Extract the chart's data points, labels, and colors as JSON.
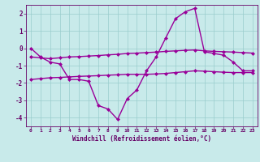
{
  "xlabel": "Windchill (Refroidissement éolien,°C)",
  "x_hours": [
    0,
    1,
    2,
    3,
    4,
    5,
    6,
    7,
    8,
    9,
    10,
    11,
    12,
    13,
    14,
    15,
    16,
    17,
    18,
    19,
    20,
    21,
    22,
    23
  ],
  "line1": [
    0.0,
    -0.5,
    -0.8,
    -0.9,
    -1.8,
    -1.8,
    -1.9,
    -3.3,
    -3.5,
    -4.1,
    -2.9,
    -2.4,
    -1.3,
    -0.5,
    0.6,
    1.7,
    2.1,
    2.3,
    -0.2,
    -0.3,
    -0.4,
    -0.8,
    -1.3,
    -1.3
  ],
  "line2": [
    -0.5,
    -0.55,
    -0.6,
    -0.55,
    -0.5,
    -0.48,
    -0.45,
    -0.42,
    -0.38,
    -0.35,
    -0.3,
    -0.28,
    -0.25,
    -0.22,
    -0.18,
    -0.15,
    -0.12,
    -0.1,
    -0.15,
    -0.18,
    -0.2,
    -0.22,
    -0.25,
    -0.28
  ],
  "line3": [
    -1.8,
    -1.75,
    -1.7,
    -1.68,
    -1.65,
    -1.62,
    -1.6,
    -1.58,
    -1.55,
    -1.53,
    -1.5,
    -1.5,
    -1.5,
    -1.48,
    -1.45,
    -1.4,
    -1.35,
    -1.3,
    -1.32,
    -1.35,
    -1.38,
    -1.4,
    -1.4,
    -1.4
  ],
  "line_color": "#990099",
  "bg_color": "#c8eaea",
  "grid_color": "#99cccc",
  "text_color": "#660066",
  "ylim": [
    -4.5,
    2.5
  ],
  "yticks": [
    -4,
    -3,
    -2,
    -1,
    0,
    1,
    2
  ],
  "marker": "D",
  "markersize": 2,
  "linewidth": 1.0
}
